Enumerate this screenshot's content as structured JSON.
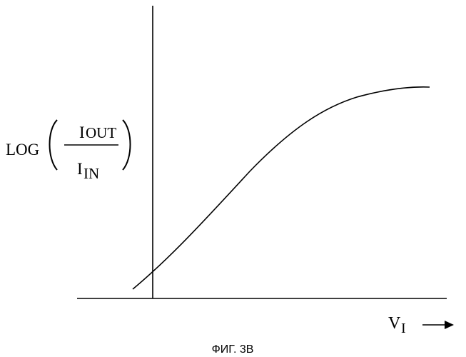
{
  "figure": {
    "caption": "ФИГ. 3В",
    "y_axis_label": {
      "log": "LOG",
      "numerator_main": "I",
      "numerator_sub": "OUT",
      "denominator_main": "I",
      "denominator_sub": "IN"
    },
    "x_axis_label": {
      "main": "V",
      "sub": "I"
    }
  }
}
